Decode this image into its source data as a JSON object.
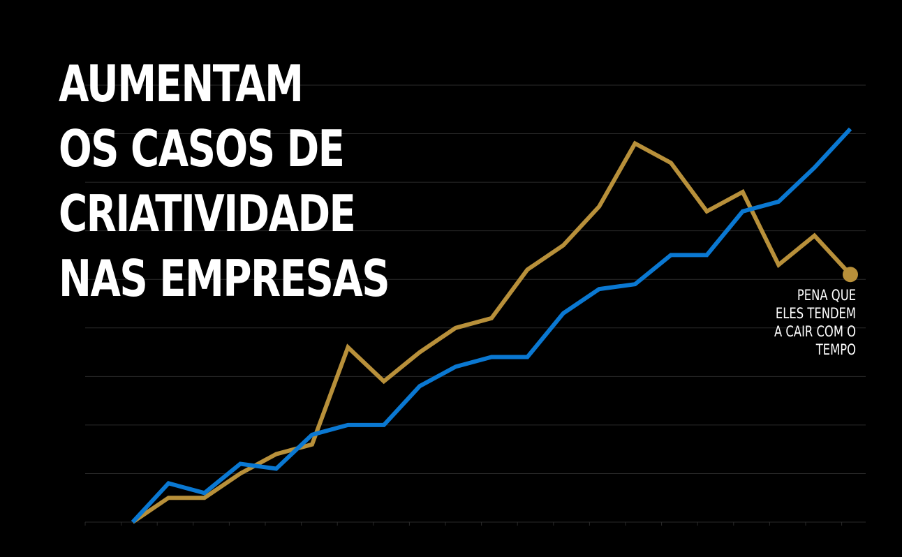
{
  "title_lines": [
    "AUMENTAM",
    "OS CASOS DE",
    "CRIATIVIDADE",
    "NAS EMPRESAS"
  ],
  "annotation_lines": [
    "PENA QUE",
    "ELES TENDEM",
    "A CAIR COM O",
    "TEMPO"
  ],
  "colors": {
    "background": "#000000",
    "grid": "#2a2a2a",
    "gold": "#b8903a",
    "blue": "#0a78d2",
    "text": "#ffffff"
  },
  "chart_data": {
    "type": "line",
    "title": "AUMENTAM OS CASOS DE CRIATIVIDADE NAS EMPRESAS",
    "xlabel": "",
    "ylabel": "",
    "x": [
      0,
      1,
      2,
      3,
      4,
      5,
      6,
      7,
      8,
      9,
      10,
      11,
      12,
      13,
      14,
      15,
      16,
      17,
      18,
      19,
      20
    ],
    "ylim": [
      0,
      9
    ],
    "grid": true,
    "series": [
      {
        "name": "",
        "color": "gold",
        "end_marker": true,
        "values": [
          0.0,
          0.5,
          0.5,
          1.0,
          1.4,
          1.6,
          3.6,
          2.9,
          3.5,
          4.0,
          4.2,
          5.2,
          5.7,
          6.5,
          7.8,
          7.4,
          6.4,
          6.8,
          5.3,
          5.9,
          5.1
        ]
      },
      {
        "name": "",
        "color": "blue",
        "end_marker": false,
        "values": [
          0.0,
          0.8,
          0.6,
          1.2,
          1.1,
          1.8,
          2.0,
          2.0,
          2.8,
          3.2,
          3.4,
          3.4,
          4.3,
          4.8,
          4.9,
          5.5,
          5.5,
          6.4,
          6.6,
          7.3,
          8.1
        ]
      }
    ],
    "annotation": "PENA QUE ELES TENDEM A CAIR COM O TEMPO"
  }
}
